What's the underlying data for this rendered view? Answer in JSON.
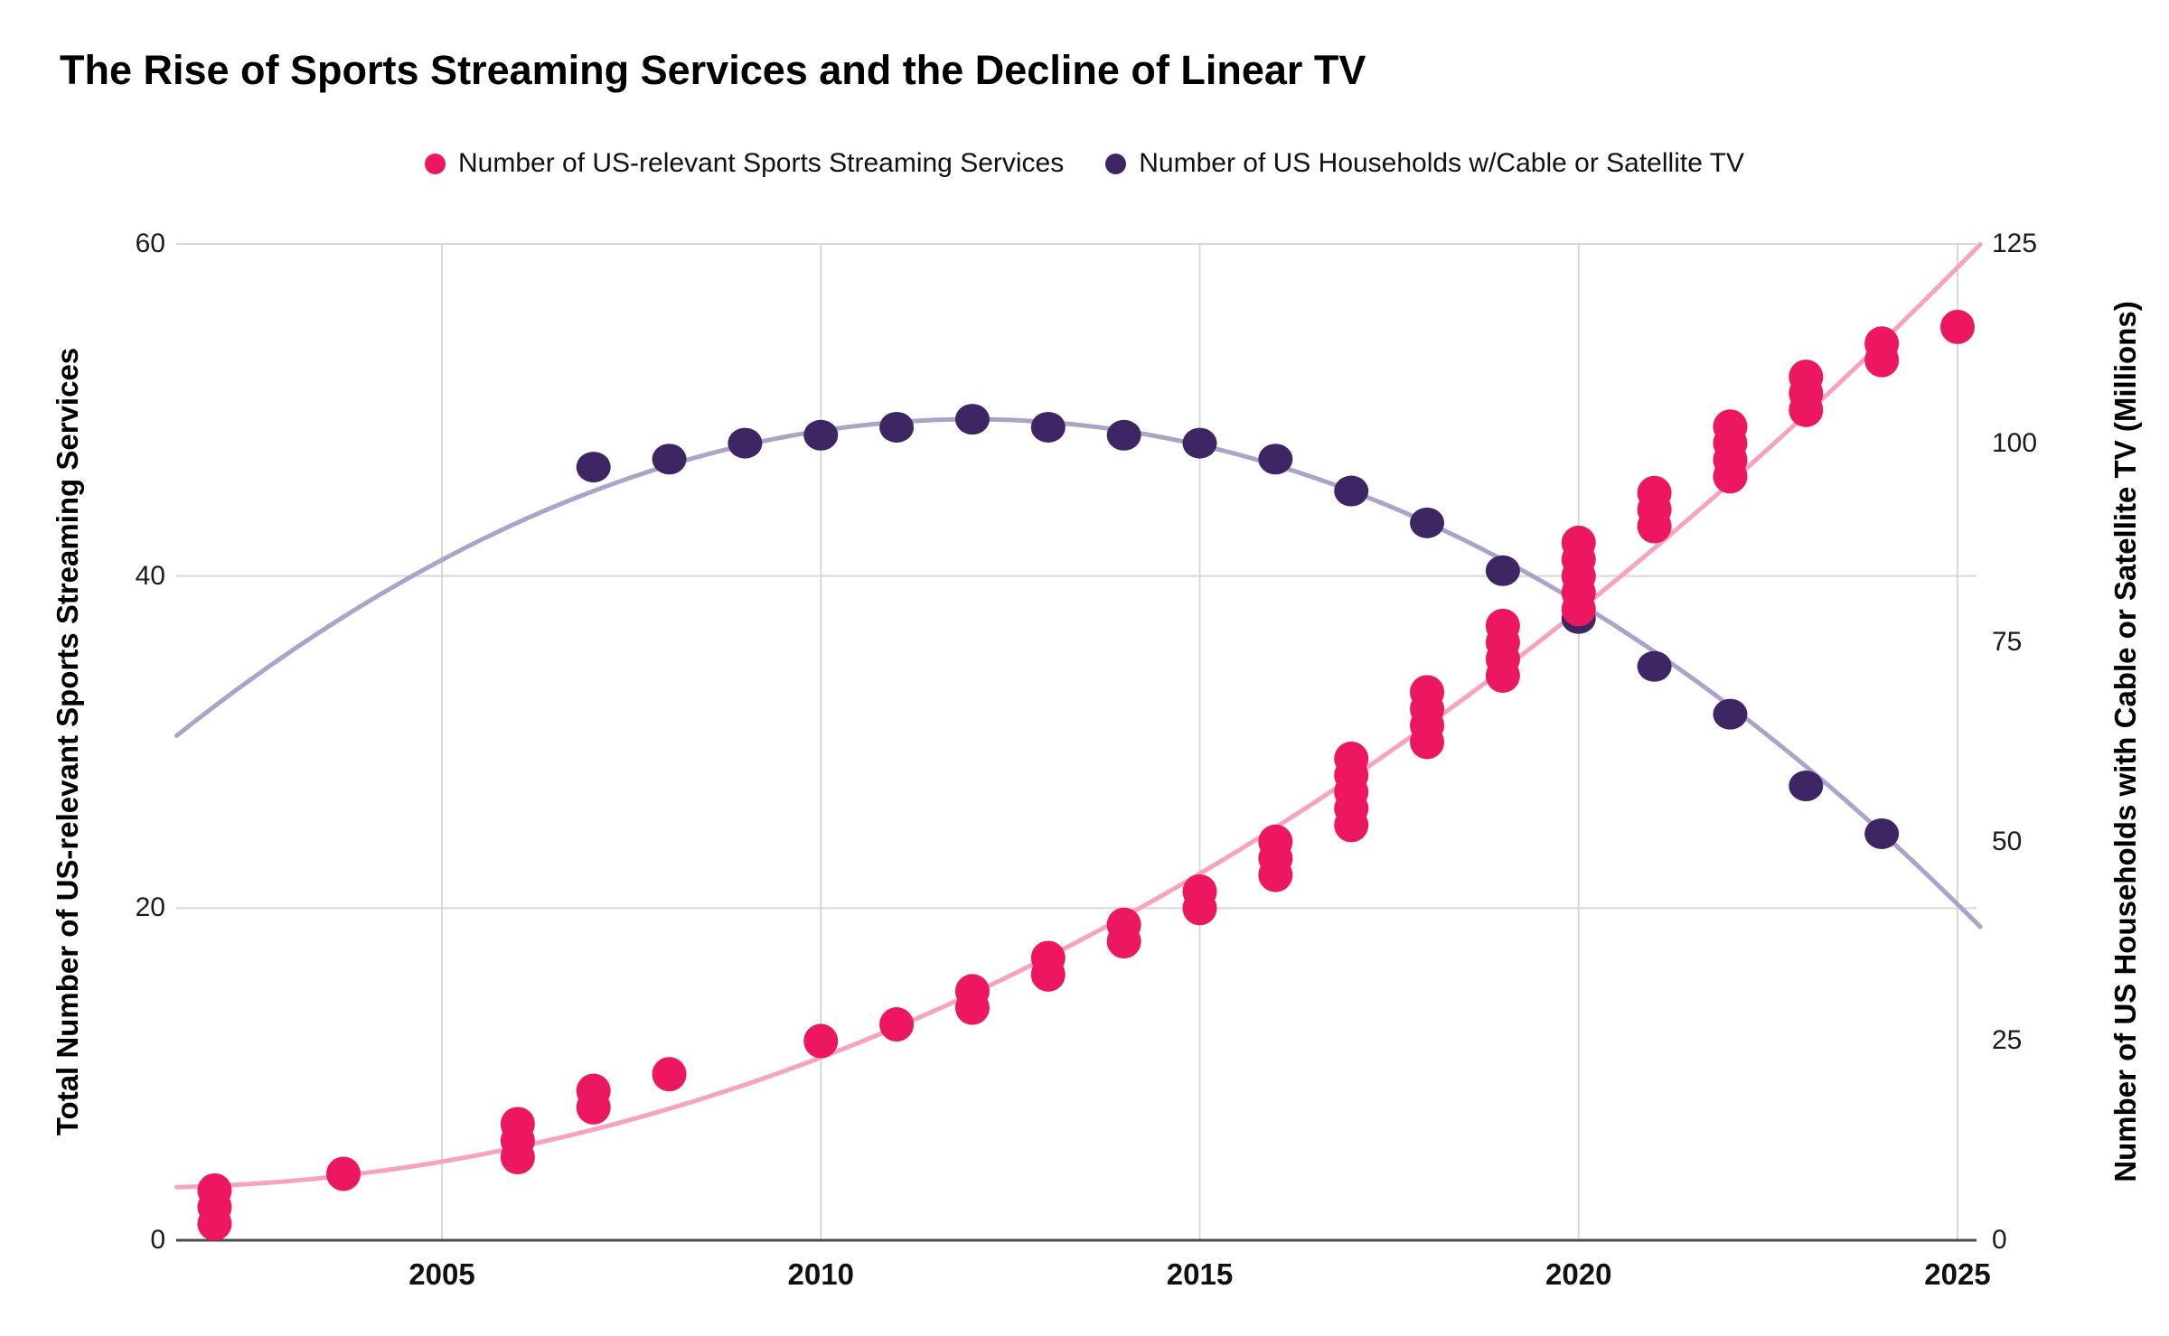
{
  "chart_data": {
    "type": "scatter",
    "title": "The Rise of Sports Streaming Services and the Decline of Linear TV",
    "legend_position": "top-center",
    "grid": true,
    "axes": {
      "x": {
        "ticks": [
          2005,
          2010,
          2015,
          2020,
          2025
        ],
        "range": [
          2001.5,
          2025.3
        ]
      },
      "y_left": {
        "label": "Total Number of US-relevant Sports Streaming Services",
        "ticks": [
          0,
          20,
          40,
          60
        ],
        "range": [
          0,
          60
        ]
      },
      "y_right": {
        "label": "Number of US Households with Cable or Satellite TV (Millions)",
        "ticks": [
          0,
          25,
          50,
          75,
          100,
          125
        ],
        "range": [
          0,
          125
        ]
      }
    },
    "series": [
      {
        "name": "Number of US-relevant Sports Streaming Services",
        "axis": "left",
        "color": "#EC1760",
        "trend_color": "#F7A3C0",
        "trend": {
          "type": "quadratic",
          "origin": 2001.5,
          "c0": 3.2,
          "c1": 0.103,
          "c2": 0.0959
        },
        "points": [
          [
            2002,
            1
          ],
          [
            2002,
            2
          ],
          [
            2002,
            3
          ],
          [
            2003.7,
            4
          ],
          [
            2006,
            5
          ],
          [
            2006,
            6
          ],
          [
            2006,
            7
          ],
          [
            2007,
            8
          ],
          [
            2007,
            9
          ],
          [
            2008,
            10
          ],
          [
            2010,
            12
          ],
          [
            2011,
            13
          ],
          [
            2012,
            14
          ],
          [
            2012,
            15
          ],
          [
            2013,
            16
          ],
          [
            2013,
            17
          ],
          [
            2014,
            18
          ],
          [
            2014,
            19
          ],
          [
            2015,
            20
          ],
          [
            2015,
            21
          ],
          [
            2016,
            22
          ],
          [
            2016,
            23
          ],
          [
            2016,
            24
          ],
          [
            2017,
            25
          ],
          [
            2017,
            26
          ],
          [
            2017,
            27
          ],
          [
            2017,
            28
          ],
          [
            2017,
            29
          ],
          [
            2018,
            30
          ],
          [
            2018,
            31
          ],
          [
            2018,
            32
          ],
          [
            2018,
            33
          ],
          [
            2019,
            34
          ],
          [
            2019,
            35
          ],
          [
            2019,
            36
          ],
          [
            2019,
            37
          ],
          [
            2020,
            38
          ],
          [
            2020,
            39
          ],
          [
            2020,
            40
          ],
          [
            2020,
            41
          ],
          [
            2020,
            42
          ],
          [
            2021,
            43
          ],
          [
            2021,
            44
          ],
          [
            2021,
            45
          ],
          [
            2022,
            46
          ],
          [
            2022,
            47
          ],
          [
            2022,
            48
          ],
          [
            2022,
            49
          ],
          [
            2023,
            50
          ],
          [
            2023,
            51
          ],
          [
            2023,
            52
          ],
          [
            2024,
            53
          ],
          [
            2024,
            54
          ],
          [
            2025,
            55
          ]
        ]
      },
      {
        "name": "Number of US Households w/Cable or Satellite TV",
        "axis": "right",
        "color": "#3E2564",
        "trend_color": "#ABA4C8",
        "trend": {
          "type": "quadratic",
          "origin": 2012,
          "c0": 103,
          "c1": 0,
          "c2": -0.36
        },
        "points": [
          [
            2007,
            97
          ],
          [
            2008,
            98
          ],
          [
            2009,
            100
          ],
          [
            2010,
            101
          ],
          [
            2011,
            102
          ],
          [
            2012,
            103
          ],
          [
            2013,
            102
          ],
          [
            2014,
            101
          ],
          [
            2015,
            100
          ],
          [
            2016,
            98
          ],
          [
            2017,
            94
          ],
          [
            2018,
            90
          ],
          [
            2019,
            84
          ],
          [
            2020,
            78
          ],
          [
            2021,
            72
          ],
          [
            2022,
            66
          ],
          [
            2023,
            57
          ],
          [
            2024,
            51
          ]
        ]
      }
    ],
    "colors": {
      "gridline": "#D8D8D8",
      "axis_line": "#4B4B4B",
      "text": "#000000"
    }
  }
}
